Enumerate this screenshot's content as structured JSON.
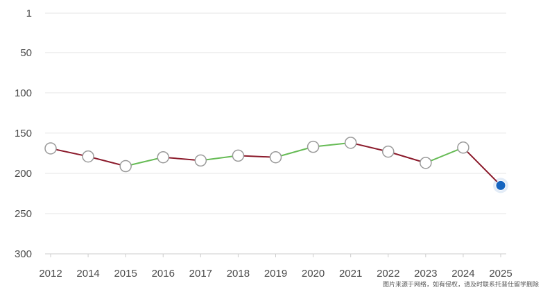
{
  "chart_data": {
    "type": "line",
    "title": "",
    "xlabel": "",
    "ylabel": "",
    "y_inverted": true,
    "ylim": [
      1,
      300
    ],
    "y_ticks": [
      "1",
      "50",
      "100",
      "150",
      "200",
      "250",
      "300"
    ],
    "grid": true,
    "categories": [
      "2012",
      "2014",
      "2015",
      "2016",
      "2017",
      "2018",
      "2019",
      "2020",
      "2021",
      "2022",
      "2023",
      "2024",
      "2025"
    ],
    "values": [
      169,
      179,
      191,
      180,
      184,
      178,
      180,
      167,
      162,
      173,
      187,
      168,
      215
    ],
    "colors": {
      "rise": "#66bb55",
      "fall": "#8b1a2b",
      "marker_fill": "#ffffff",
      "marker_stroke": "#999999",
      "last_marker": "#1565c0",
      "grid": "#e6e6e6",
      "axis": "#cccccc"
    }
  },
  "watermark": "图片来源于网络，如有侵权，请及时联系托普仕留学删除"
}
